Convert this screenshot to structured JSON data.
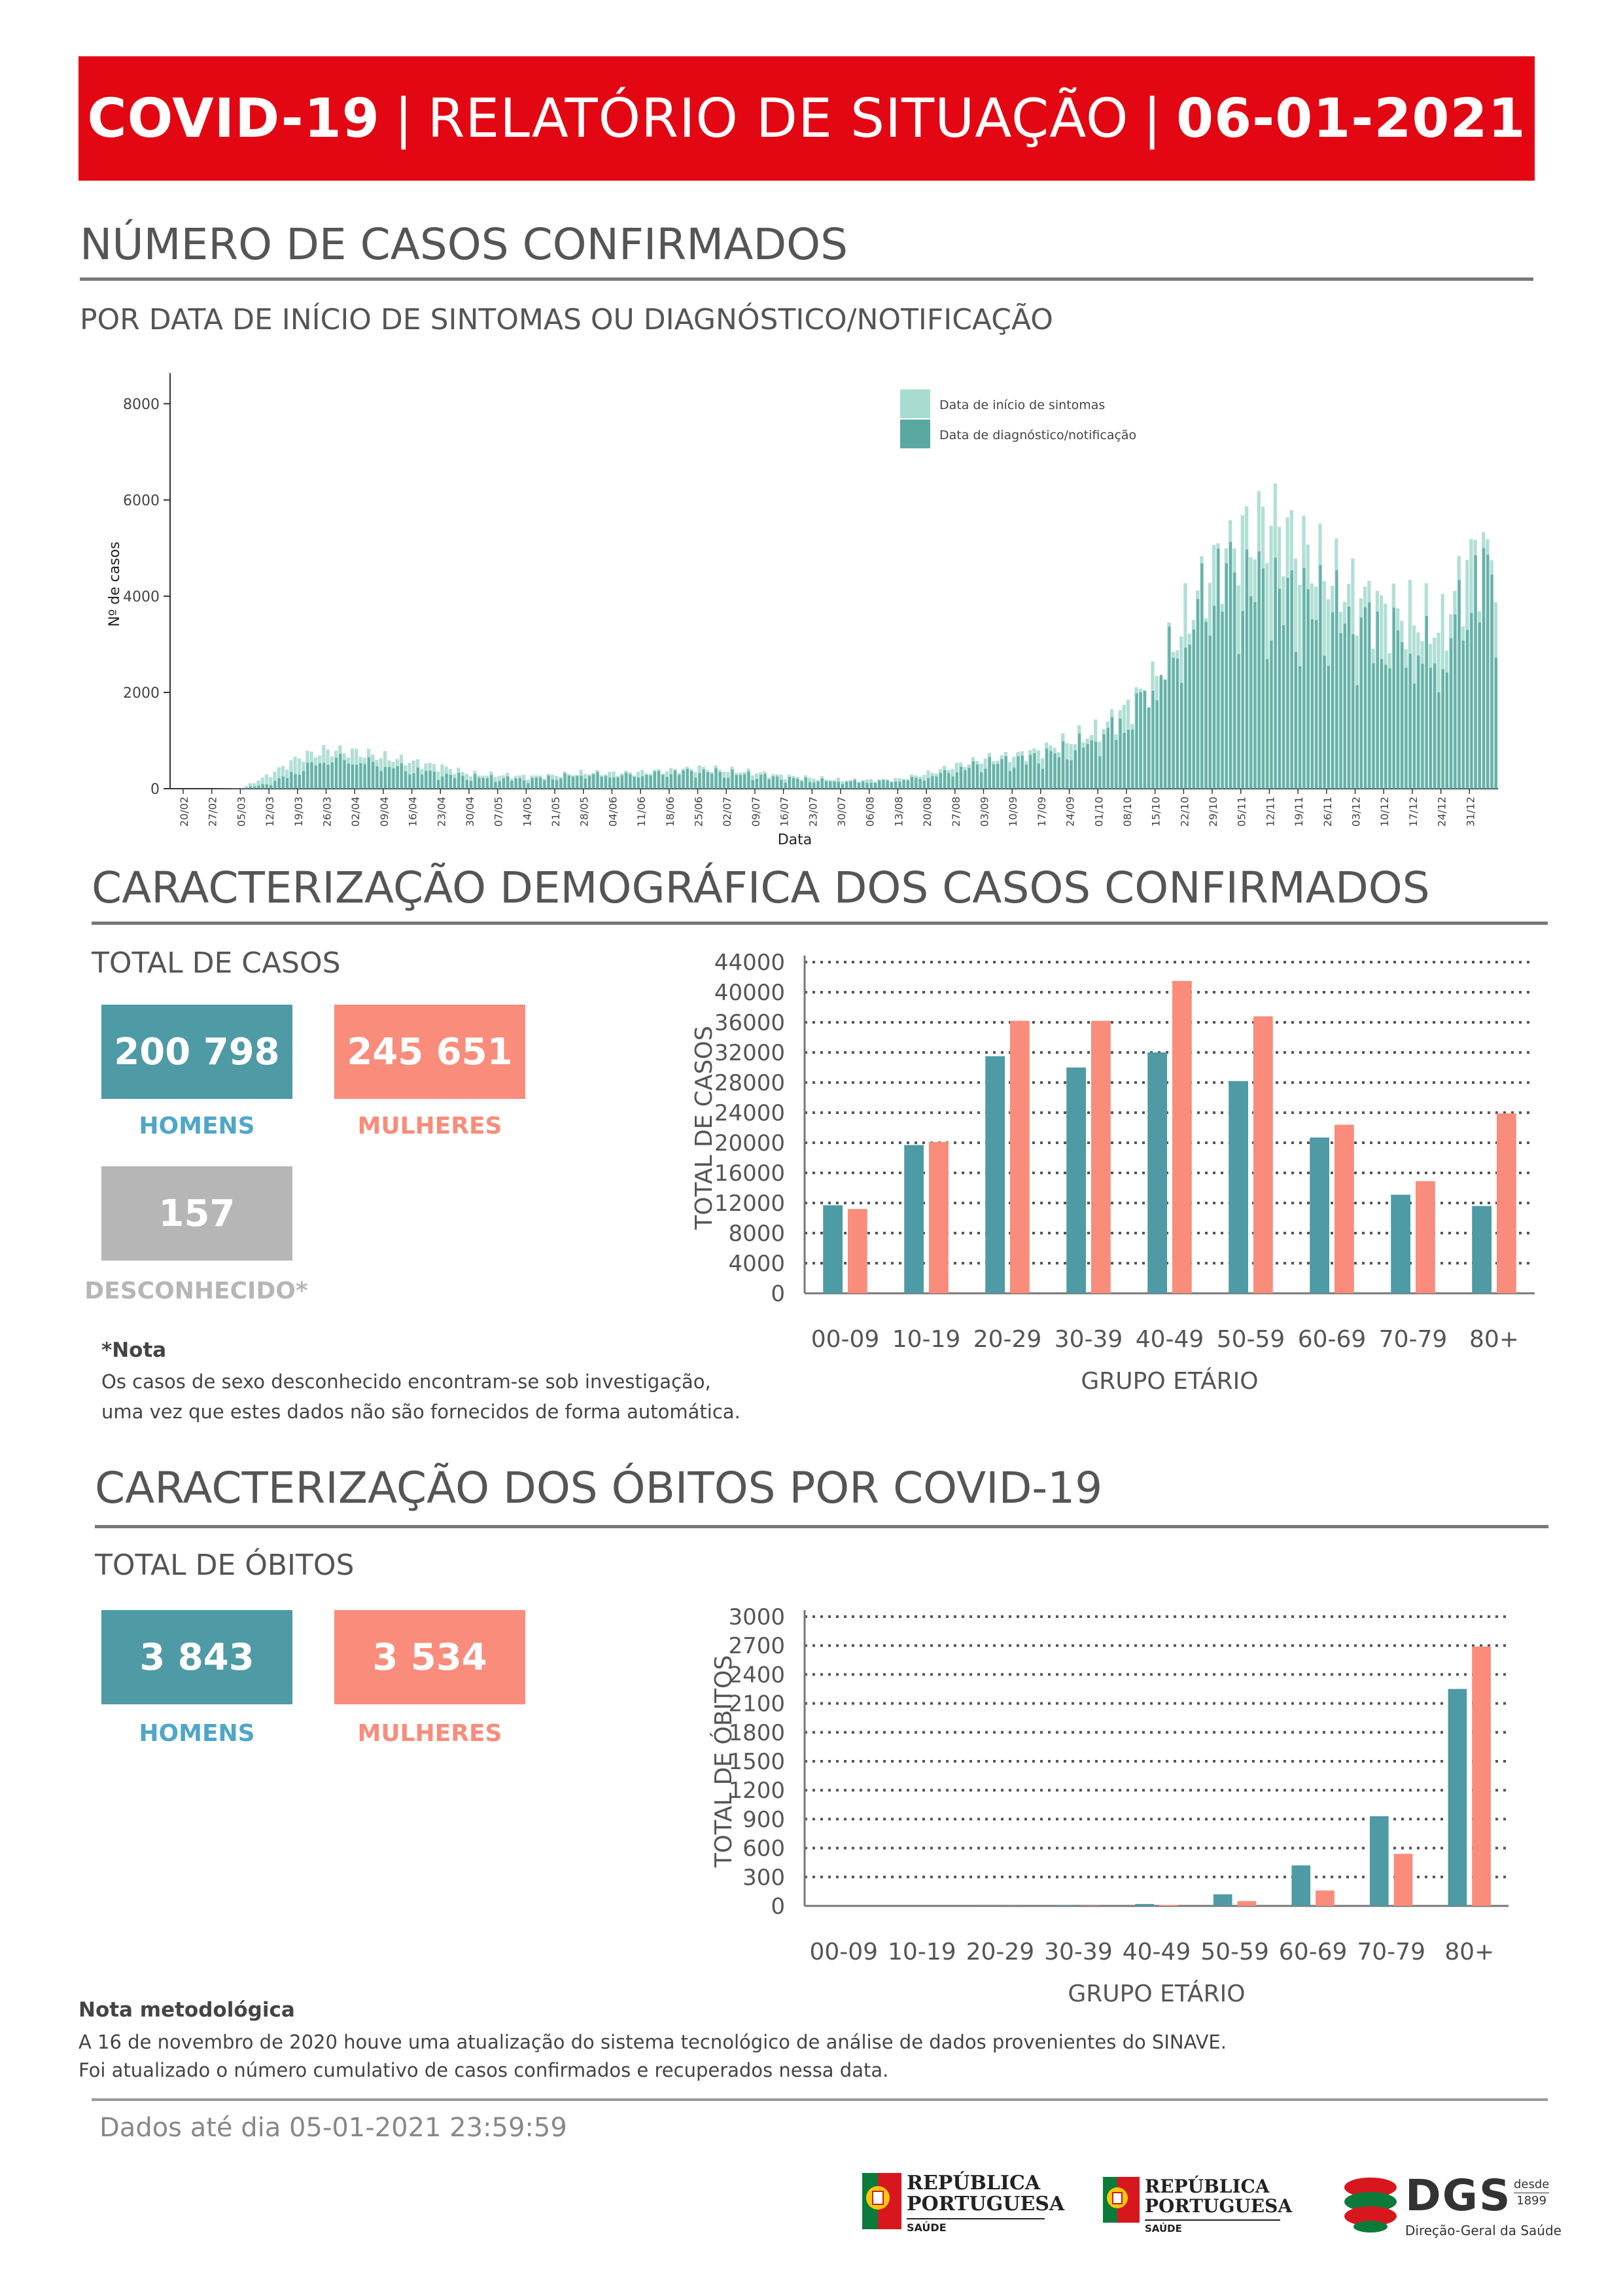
{
  "header": {
    "title_part1": "COVID-19",
    "title_part2": "RELATÓRIO DE SITUAÇÃO",
    "title_date": "06-01-2021",
    "color": "#e30613"
  },
  "section_cases": {
    "title": "NÚMERO DE CASOS CONFIRMADOS",
    "subtitle": "POR DATA DE INÍCIO DE SINTOMAS OU DIAGNÓSTICO/NOTIFICAÇÃO"
  },
  "section_demographic": {
    "title": "CARACTERIZAÇÃO DEMOGRÁFICA DOS CASOS CONFIRMADOS",
    "total_label": "TOTAL DE CASOS",
    "men_value": "200 798",
    "men_label": "HOMENS",
    "women_value": "245 651",
    "women_label": "MULHERES",
    "unknown_value": "157",
    "unknown_label": "DESCONHECIDO*",
    "note_title": "*Nota",
    "note_line1": "Os casos de sexo desconhecido encontram-se sob investigação,",
    "note_line2": "uma vez que estes dados não são fornecidos de forma automática."
  },
  "section_deaths": {
    "title": "CARACTERIZAÇÃO DOS ÓBITOS POR COVID-19",
    "total_label": "TOTAL DE ÓBITOS",
    "men_value": "3 843",
    "men_label": "HOMENS",
    "women_value": "3 534",
    "women_label": "MULHERES"
  },
  "methodology": {
    "title": "Nota metodológica",
    "line1": "A 16 de novembro de 2020 houve uma atualização do sistema tecnológico de análise de dados provenientes do SINAVE.",
    "line2": "Foi atualizado o número cumulativo de casos confirmados e recuperados nessa data."
  },
  "footer": {
    "data_until": "Dados até dia 05-01-2021 23:59:59",
    "logo1_line1": "REPÚBLICA",
    "logo1_line2": "PORTUGUESA",
    "logo1_line3": "SAÚDE",
    "logo2_line1": "REPÚBLICA",
    "logo2_line2": "PORTUGUESA",
    "logo2_line3": "SAÚDE",
    "dgs_text": "DGS",
    "dgs_since": "desde",
    "dgs_year": "1899",
    "dgs_name": "Direção-Geral da Saúde"
  },
  "colors": {
    "men": "#4e9aa5",
    "women": "#f98c7b",
    "unknown": "#b6b6b6",
    "symptoms": "#a8dcd1",
    "diagnosis": "#5aa9a0"
  },
  "chart_data": [
    {
      "type": "bar",
      "id": "daily_cases",
      "xlabel": "Data",
      "ylabel": "Nº de casos",
      "ylim": [
        0,
        8500
      ],
      "yticks": [
        0,
        2000,
        4000,
        6000,
        8000
      ],
      "x_tick_labels": [
        "20/02",
        "27/02",
        "05/03",
        "12/03",
        "19/03",
        "26/03",
        "02/04",
        "09/04",
        "16/04",
        "23/04",
        "30/04",
        "07/05",
        "14/05",
        "21/05",
        "28/05",
        "04/06",
        "11/06",
        "18/06",
        "25/06",
        "02/07",
        "09/07",
        "16/07",
        "23/07",
        "30/07",
        "06/08",
        "13/08",
        "20/08",
        "27/08",
        "03/09",
        "10/09",
        "17/09",
        "24/09",
        "01/10",
        "08/10",
        "15/10",
        "22/10",
        "29/10",
        "05/11",
        "12/11",
        "19/11",
        "26/11",
        "03/12",
        "10/12",
        "17/12",
        "24/12",
        "31/12"
      ],
      "legend": "top-right",
      "series": [
        {
          "name": "Data de início de sintomas"
        },
        {
          "name": "Data de diagnóstico/notificação"
        }
      ],
      "weekly_values": {
        "Data de início de sintomas": [
          0,
          0,
          10,
          300,
          650,
          800,
          750,
          650,
          550,
          450,
          300,
          280,
          250,
          280,
          330,
          320,
          340,
          380,
          430,
          380,
          330,
          260,
          220,
          180,
          180,
          200,
          320,
          480,
          620,
          680,
          800,
          1000,
          1200,
          1700,
          2300,
          3500,
          4600,
          5200,
          5600,
          5000,
          4400,
          4000,
          3700,
          3500,
          3300,
          4800
        ],
        "Data de diagnóstico/notificação": [
          0,
          0,
          5,
          120,
          400,
          650,
          600,
          500,
          400,
          300,
          250,
          220,
          200,
          250,
          300,
          280,
          300,
          350,
          380,
          330,
          280,
          220,
          180,
          150,
          150,
          180,
          250,
          400,
          550,
          600,
          700,
          850,
          1100,
          1500,
          2400,
          3200,
          4600,
          4500,
          4200,
          4000,
          3800,
          3600,
          3300,
          3000,
          2700,
          4500
        ]
      }
    },
    {
      "type": "bar",
      "id": "cases_by_age",
      "xlabel": "GRUPO ETÁRIO",
      "ylabel": "TOTAL DE CASOS",
      "ylim": [
        0,
        44000
      ],
      "yticks": [
        0,
        4000,
        8000,
        12000,
        16000,
        20000,
        24000,
        28000,
        32000,
        36000,
        40000,
        44000
      ],
      "categories": [
        "00-09",
        "10-19",
        "20-29",
        "30-39",
        "40-49",
        "50-59",
        "60-69",
        "70-79",
        "80+"
      ],
      "series": [
        {
          "name": "Homens",
          "values": [
            11700,
            19700,
            31500,
            30000,
            32000,
            28200,
            20700,
            13100,
            11600
          ]
        },
        {
          "name": "Mulheres",
          "values": [
            11200,
            20100,
            36200,
            36200,
            41500,
            36800,
            22400,
            14900,
            23900
          ]
        }
      ]
    },
    {
      "type": "bar",
      "id": "deaths_by_age",
      "xlabel": "GRUPO ETÁRIO",
      "ylabel": "TOTAL DE ÓBITOS",
      "ylim": [
        0,
        3000
      ],
      "yticks": [
        0,
        300,
        600,
        900,
        1200,
        1500,
        1800,
        2100,
        2400,
        2700,
        3000
      ],
      "categories": [
        "00-09",
        "10-19",
        "20-29",
        "30-39",
        "40-49",
        "50-59",
        "60-69",
        "70-79",
        "80+"
      ],
      "series": [
        {
          "name": "Homens",
          "values": [
            0,
            0,
            2,
            5,
            20,
            120,
            420,
            930,
            2250
          ]
        },
        {
          "name": "Mulheres",
          "values": [
            0,
            0,
            1,
            3,
            10,
            50,
            160,
            540,
            2690
          ]
        }
      ]
    }
  ]
}
